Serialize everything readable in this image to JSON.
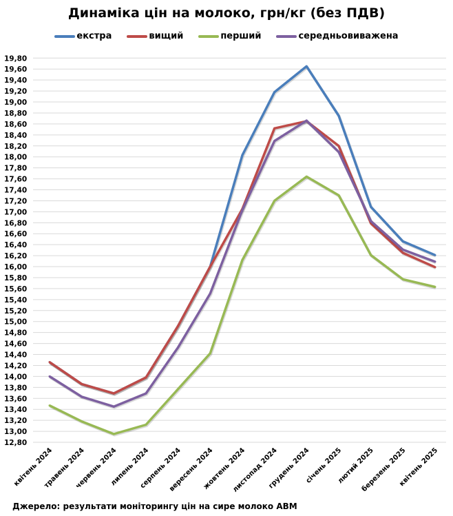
{
  "chart_data": {
    "type": "line",
    "title": "Динаміка цін на молоко, грн/кг (без ПДВ)",
    "xlabel": "",
    "ylabel": "",
    "categories": [
      "квітень 2024",
      "травень 2024",
      "червень 2024",
      "липень 2024",
      "серпень 2024",
      "вересень 2024",
      "жовтень 2024",
      "листопад 2024",
      "грудень 2024",
      "січень 2025",
      "лютий 2025",
      "березень 2025",
      "квітень 2025"
    ],
    "ylim": [
      12.8,
      19.8
    ],
    "y_tick_step": 0.2,
    "y_tick_labels": [
      "12,80",
      "13,00",
      "13,20",
      "13,40",
      "13,60",
      "13,80",
      "14,00",
      "14,20",
      "14,40",
      "14,60",
      "14,80",
      "15,00",
      "15,20",
      "15,40",
      "15,60",
      "15,80",
      "16,00",
      "16,20",
      "16,40",
      "16,60",
      "16,80",
      "17,00",
      "17,20",
      "17,40",
      "17,60",
      "17,80",
      "18,00",
      "18,20",
      "18,40",
      "18,60",
      "18,80",
      "19,00",
      "19,20",
      "19,40",
      "19,60",
      "19,80"
    ],
    "grid": true,
    "legend_position": "top",
    "series": [
      {
        "name": "екстра",
        "color": "#4a7ebb",
        "values": [
          14.26,
          13.86,
          13.69,
          13.98,
          14.92,
          16.0,
          18.03,
          19.18,
          19.65,
          18.75,
          17.09,
          16.46,
          16.21
        ]
      },
      {
        "name": "вищий",
        "color": "#be4b48",
        "values": [
          14.26,
          13.86,
          13.69,
          13.98,
          14.92,
          16.0,
          17.05,
          18.52,
          18.65,
          18.2,
          16.79,
          16.25,
          15.99
        ]
      },
      {
        "name": "перший",
        "color": "#98b954",
        "values": [
          13.47,
          13.18,
          12.95,
          13.12,
          13.77,
          14.42,
          16.12,
          17.2,
          17.64,
          17.3,
          16.21,
          15.77,
          15.63
        ]
      },
      {
        "name": "середньовиважена",
        "color": "#7d60a0",
        "values": [
          14.0,
          13.63,
          13.45,
          13.69,
          14.53,
          15.51,
          17.03,
          18.29,
          18.66,
          18.09,
          16.83,
          16.31,
          16.09
        ]
      }
    ],
    "source": "Джерело: результати моніторингу цін на сире молоко АВМ"
  }
}
